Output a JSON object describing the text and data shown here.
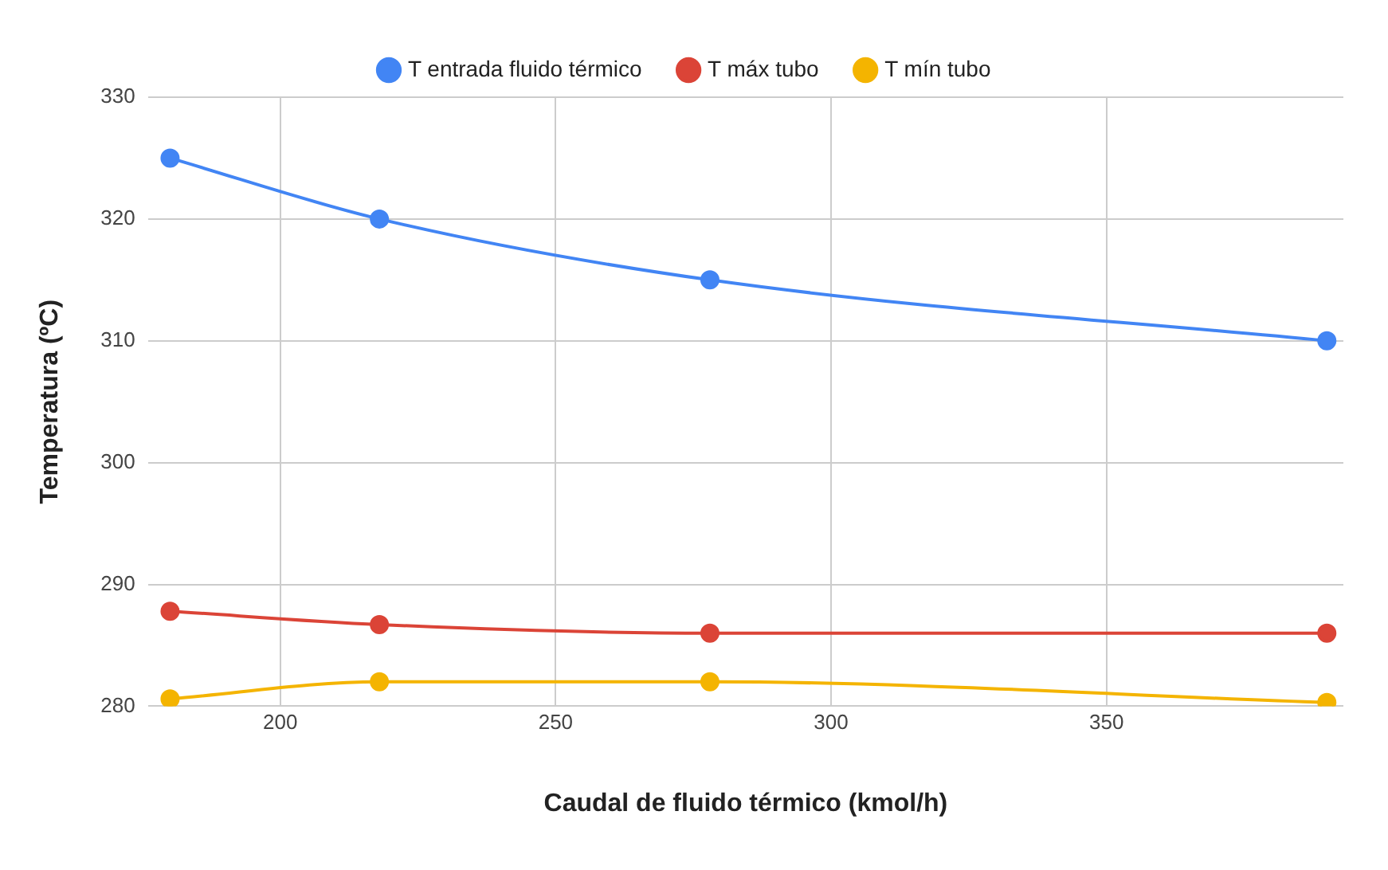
{
  "chart_data": {
    "type": "line",
    "xlabel": "Caudal de fluido térmico (kmol/h)",
    "ylabel": "Temperatura (ºC)",
    "x": [
      180,
      218,
      278,
      390
    ],
    "series": [
      {
        "name": "T entrada fluido térmico",
        "color": "#4285f4",
        "values": [
          325,
          320,
          315,
          310
        ]
      },
      {
        "name": "T máx tubo",
        "color": "#db4437",
        "values": [
          287.8,
          286.7,
          286.0,
          286.0
        ]
      },
      {
        "name": "T mín tubo",
        "color": "#f4b400",
        "values": [
          280.6,
          282.0,
          282.0,
          280.3
        ]
      }
    ],
    "xlim": [
      176,
      393
    ],
    "xticks": [
      200,
      250,
      300,
      350
    ],
    "ylim": [
      280,
      330
    ],
    "yticks": [
      280,
      290,
      300,
      310,
      320,
      330
    ],
    "grid": true,
    "legend": "top",
    "marker": "circle",
    "line_style": "solid"
  }
}
